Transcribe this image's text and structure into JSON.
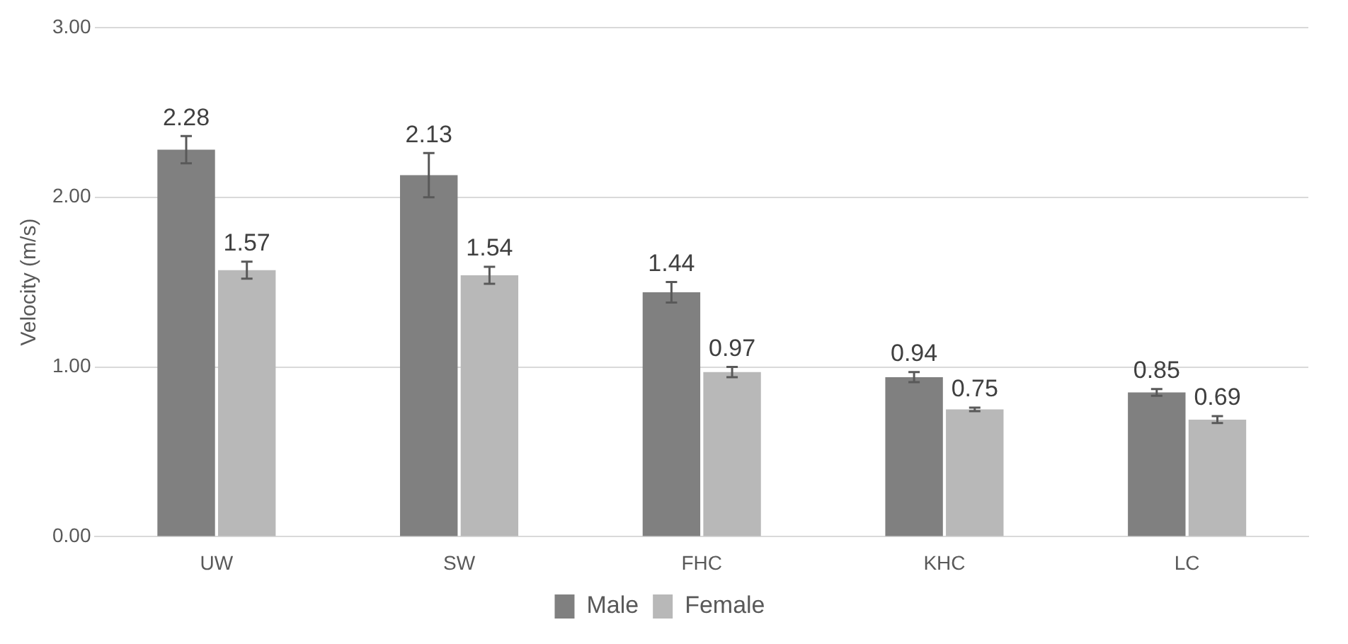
{
  "chart_data": {
    "type": "bar",
    "ylabel": "Velocity (m/s)",
    "categories": [
      "UW",
      "SW",
      "FHC",
      "KHC",
      "LC"
    ],
    "series": [
      {
        "name": "Male",
        "color": "#808080",
        "values": [
          2.28,
          2.13,
          1.44,
          0.94,
          0.85
        ],
        "errors": [
          0.08,
          0.13,
          0.06,
          0.03,
          0.02
        ]
      },
      {
        "name": "Female",
        "color": "#b8b8b8",
        "values": [
          1.57,
          1.54,
          0.97,
          0.75,
          0.69
        ],
        "errors": [
          0.05,
          0.05,
          0.03,
          0.01,
          0.02
        ]
      }
    ],
    "ylim": [
      0,
      3
    ],
    "yticks": [
      {
        "value": 0,
        "label": "0.00"
      },
      {
        "value": 1,
        "label": "1.00"
      },
      {
        "value": 2,
        "label": "2.00"
      },
      {
        "value": 3,
        "label": "3.00"
      }
    ],
    "grid": "y",
    "legend": "bottom",
    "data_labels": true
  }
}
